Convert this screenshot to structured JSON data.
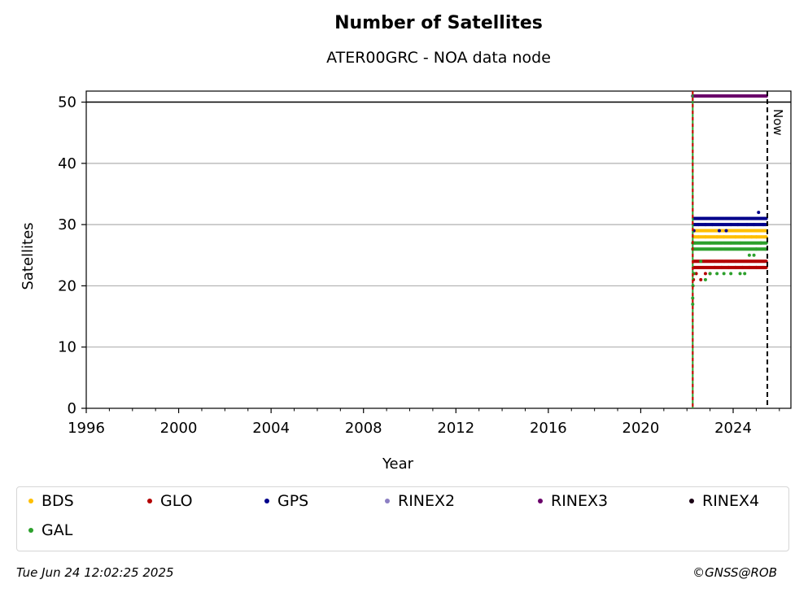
{
  "chart_data": {
    "type": "scatter",
    "title": "Number of Satellites",
    "subtitle": "ATER00GRC - NOA data node",
    "xlabel": "Year",
    "ylabel": "Satellites",
    "xlim": [
      1996,
      2026.5
    ],
    "ylim": [
      0,
      51.8
    ],
    "x_ticks": [
      "1996",
      "2000",
      "2004",
      "2008",
      "2012",
      "2016",
      "2020",
      "2024"
    ],
    "x_tick_values": [
      1996,
      2000,
      2004,
      2008,
      2012,
      2016,
      2020,
      2024
    ],
    "y_ticks": [
      "0",
      "10",
      "20",
      "30",
      "40",
      "50"
    ],
    "y_tick_values": [
      0,
      10,
      20,
      30,
      40,
      50
    ],
    "grid": "horizontal",
    "hline": 50,
    "vlines": [
      {
        "x": 2022.25,
        "style": "dashed",
        "colors": [
          "#2ca02c",
          "#cc0000"
        ]
      },
      {
        "x": 2025.48,
        "style": "dashed",
        "colors": [
          "#000000"
        ],
        "label": "Now"
      }
    ],
    "series": [
      {
        "name": "BDS",
        "color": "#ffbf00",
        "x_range": [
          2022.28,
          2025.45
        ],
        "points": [
          [
            2022.28,
            24
          ],
          [
            2022.35,
            27
          ],
          [
            2022.5,
            28
          ],
          [
            2022.8,
            28
          ],
          [
            2023.0,
            27
          ],
          [
            2023.3,
            28
          ],
          [
            2023.6,
            28
          ],
          [
            2023.9,
            27
          ],
          [
            2024.1,
            28
          ],
          [
            2024.3,
            27
          ],
          [
            2024.5,
            28
          ],
          [
            2024.8,
            28
          ],
          [
            2025.0,
            28
          ],
          [
            2025.2,
            27
          ],
          [
            2025.4,
            28
          ]
        ],
        "band": [
          28,
          29
        ]
      },
      {
        "name": "GLO",
        "color": "#b30000",
        "x_range": [
          2022.28,
          2025.45
        ],
        "points": [
          [
            2022.28,
            21
          ],
          [
            2022.4,
            22
          ],
          [
            2022.6,
            21
          ],
          [
            2022.8,
            22
          ],
          [
            2023.0,
            22
          ],
          [
            2023.2,
            23
          ],
          [
            2023.5,
            23
          ],
          [
            2023.8,
            23
          ],
          [
            2024.1,
            23
          ],
          [
            2024.4,
            23
          ],
          [
            2024.7,
            23
          ],
          [
            2025.0,
            23
          ],
          [
            2025.3,
            23
          ]
        ],
        "band": [
          23,
          24
        ]
      },
      {
        "name": "GPS",
        "color": "#00008b",
        "x_range": [
          2022.28,
          2025.45
        ],
        "points": [
          [
            2022.28,
            27
          ],
          [
            2022.3,
            29
          ],
          [
            2022.5,
            30
          ],
          [
            2022.8,
            30
          ],
          [
            2023.1,
            30
          ],
          [
            2023.4,
            29
          ],
          [
            2023.7,
            29
          ],
          [
            2023.9,
            30
          ],
          [
            2024.2,
            30
          ],
          [
            2024.6,
            30
          ],
          [
            2024.9,
            30
          ],
          [
            2025.1,
            32
          ],
          [
            2025.3,
            30
          ]
        ],
        "band": [
          30,
          31
        ]
      },
      {
        "name": "RINEX2",
        "color": "#8c7fc3",
        "points": []
      },
      {
        "name": "RINEX3",
        "color": "#6a006a",
        "x_range": [
          2022.25,
          2025.45
        ],
        "points": [],
        "band": [
          51,
          51
        ]
      },
      {
        "name": "RINEX4",
        "color": "#1a0014",
        "points": []
      },
      {
        "name": "GAL",
        "color": "#2ca02c",
        "x_range": [
          2022.25,
          2025.45
        ],
        "points": [
          [
            2022.25,
            17
          ],
          [
            2022.25,
            18
          ],
          [
            2022.26,
            20
          ],
          [
            2022.3,
            22
          ],
          [
            2022.6,
            24
          ],
          [
            2022.8,
            21
          ],
          [
            2023.0,
            22
          ],
          [
            2023.3,
            22
          ],
          [
            2023.6,
            22
          ],
          [
            2023.9,
            22
          ],
          [
            2024.3,
            22
          ],
          [
            2024.5,
            22
          ],
          [
            2024.7,
            25
          ],
          [
            2024.9,
            25
          ],
          [
            2025.0,
            26
          ],
          [
            2025.2,
            27
          ],
          [
            2025.4,
            26
          ]
        ],
        "band": [
          26,
          27
        ]
      }
    ],
    "legend": {
      "placement": "below",
      "columns": 6,
      "entries": [
        "BDS",
        "GLO",
        "GPS",
        "RINEX2",
        "RINEX3",
        "RINEX4",
        "GAL"
      ]
    },
    "now_label": "Now"
  },
  "footer": {
    "timestamp": "Tue Jun 24 12:02:25 2025",
    "credit": "©GNSS@ROB"
  }
}
